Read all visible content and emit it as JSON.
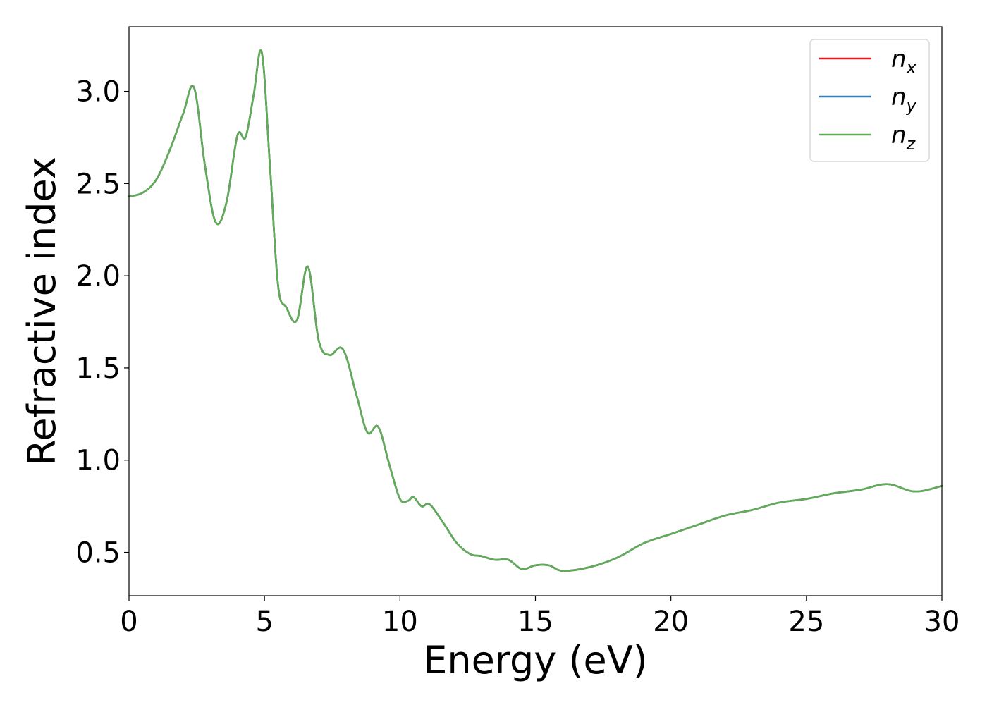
{
  "chart_data": {
    "type": "line",
    "title": "",
    "xlabel": "Energy (eV)",
    "ylabel": "Refractive index",
    "xlim": [
      0,
      30
    ],
    "ylim": [
      0.265,
      3.35
    ],
    "xticks": [
      0,
      5,
      10,
      15,
      20,
      25,
      30
    ],
    "yticks": [
      0.5,
      1.0,
      1.5,
      2.0,
      2.5,
      3.0
    ],
    "xtick_labels": [
      "0",
      "5",
      "10",
      "15",
      "20",
      "25",
      "30"
    ],
    "ytick_labels": [
      "0.5",
      "1.0",
      "1.5",
      "2.0",
      "2.5",
      "3.0"
    ],
    "grid": false,
    "legend_position": "top-right",
    "series": [
      {
        "name": "n_x",
        "label_base": "n",
        "label_sub": "x",
        "color": "#e41a1c",
        "x": [
          0,
          0.5,
          1.0,
          1.5,
          2.0,
          2.4,
          2.8,
          3.2,
          3.6,
          4.0,
          4.3,
          4.6,
          4.9,
          5.2,
          5.5,
          5.8,
          6.2,
          6.6,
          7.0,
          7.4,
          7.9,
          8.4,
          8.8,
          9.2,
          9.6,
          10.0,
          10.3,
          10.5,
          10.8,
          11.1,
          11.6,
          12.1,
          12.6,
          13.0,
          13.5,
          14.0,
          14.5,
          15.0,
          15.5,
          16.0,
          17.0,
          18.0,
          19.0,
          20.0,
          21.0,
          22.0,
          23.0,
          24.0,
          25.0,
          26.0,
          27.0,
          28.0,
          29.0,
          30.0
        ],
        "y": [
          2.43,
          2.45,
          2.52,
          2.68,
          2.88,
          3.02,
          2.6,
          2.29,
          2.4,
          2.76,
          2.75,
          2.98,
          3.21,
          2.6,
          1.95,
          1.83,
          1.76,
          2.05,
          1.65,
          1.57,
          1.6,
          1.35,
          1.15,
          1.18,
          0.98,
          0.79,
          0.78,
          0.8,
          0.75,
          0.76,
          0.66,
          0.55,
          0.49,
          0.48,
          0.46,
          0.46,
          0.41,
          0.43,
          0.43,
          0.4,
          0.42,
          0.47,
          0.55,
          0.6,
          0.65,
          0.7,
          0.73,
          0.77,
          0.79,
          0.82,
          0.84,
          0.87,
          0.83,
          0.86
        ]
      },
      {
        "name": "n_y",
        "label_base": "n",
        "label_sub": "y",
        "color": "#377eb8",
        "x": [
          0,
          0.5,
          1.0,
          1.5,
          2.0,
          2.4,
          2.8,
          3.2,
          3.6,
          4.0,
          4.3,
          4.6,
          4.9,
          5.2,
          5.5,
          5.8,
          6.2,
          6.6,
          7.0,
          7.4,
          7.9,
          8.4,
          8.8,
          9.2,
          9.6,
          10.0,
          10.3,
          10.5,
          10.8,
          11.1,
          11.6,
          12.1,
          12.6,
          13.0,
          13.5,
          14.0,
          14.5,
          15.0,
          15.5,
          16.0,
          17.0,
          18.0,
          19.0,
          20.0,
          21.0,
          22.0,
          23.0,
          24.0,
          25.0,
          26.0,
          27.0,
          28.0,
          29.0,
          30.0
        ],
        "y": [
          2.43,
          2.45,
          2.52,
          2.68,
          2.88,
          3.02,
          2.6,
          2.29,
          2.4,
          2.76,
          2.75,
          2.98,
          3.21,
          2.6,
          1.95,
          1.83,
          1.76,
          2.05,
          1.65,
          1.57,
          1.6,
          1.35,
          1.15,
          1.18,
          0.98,
          0.79,
          0.78,
          0.8,
          0.75,
          0.76,
          0.66,
          0.55,
          0.49,
          0.48,
          0.46,
          0.46,
          0.41,
          0.43,
          0.43,
          0.4,
          0.42,
          0.47,
          0.55,
          0.6,
          0.65,
          0.7,
          0.73,
          0.77,
          0.79,
          0.82,
          0.84,
          0.87,
          0.83,
          0.86
        ]
      },
      {
        "name": "n_z",
        "label_base": "n",
        "label_sub": "z",
        "color": "#5fad56",
        "x": [
          0,
          0.5,
          1.0,
          1.5,
          2.0,
          2.4,
          2.8,
          3.2,
          3.6,
          4.0,
          4.3,
          4.6,
          4.9,
          5.2,
          5.5,
          5.8,
          6.2,
          6.6,
          7.0,
          7.4,
          7.9,
          8.4,
          8.8,
          9.2,
          9.6,
          10.0,
          10.3,
          10.5,
          10.8,
          11.1,
          11.6,
          12.1,
          12.6,
          13.0,
          13.5,
          14.0,
          14.5,
          15.0,
          15.5,
          16.0,
          17.0,
          18.0,
          19.0,
          20.0,
          21.0,
          22.0,
          23.0,
          24.0,
          25.0,
          26.0,
          27.0,
          28.0,
          29.0,
          30.0
        ],
        "y": [
          2.43,
          2.45,
          2.52,
          2.68,
          2.88,
          3.02,
          2.6,
          2.29,
          2.4,
          2.76,
          2.75,
          2.98,
          3.21,
          2.6,
          1.95,
          1.83,
          1.76,
          2.05,
          1.65,
          1.57,
          1.6,
          1.35,
          1.15,
          1.18,
          0.98,
          0.79,
          0.78,
          0.8,
          0.75,
          0.76,
          0.66,
          0.55,
          0.49,
          0.48,
          0.46,
          0.46,
          0.41,
          0.43,
          0.43,
          0.4,
          0.42,
          0.47,
          0.55,
          0.6,
          0.65,
          0.7,
          0.73,
          0.77,
          0.79,
          0.82,
          0.84,
          0.87,
          0.83,
          0.86
        ]
      }
    ]
  }
}
